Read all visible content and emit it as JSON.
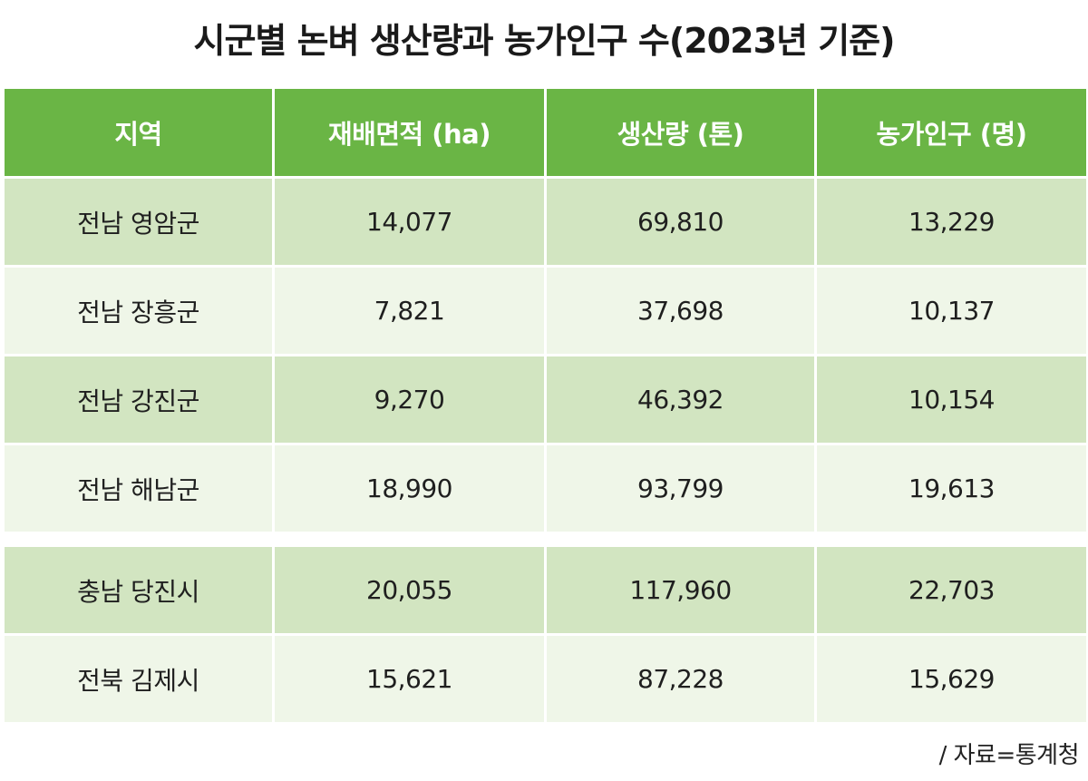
{
  "title": "시군별 논벼 생산량과 농가인구 수(2023년 기준)",
  "table": {
    "headers": [
      "지역",
      "재배면적 (ha)",
      "생산량 (톤)",
      "농가인구 (명)"
    ],
    "rows": [
      [
        "전남 영암군",
        "14,077",
        "69,810",
        "13,229"
      ],
      [
        "전남 장흥군",
        "7,821",
        "37,698",
        "10,137"
      ],
      [
        "전남 강진군",
        "9,270",
        "46,392",
        "10,154"
      ],
      [
        "전남 해남군",
        "18,990",
        "93,799",
        "19,613"
      ],
      [
        "충남 당진시",
        "20,055",
        "117,960",
        "22,703"
      ],
      [
        "전북 김제시",
        "15,621",
        "87,228",
        "15,629"
      ]
    ]
  },
  "source": "/ 자료=통계청",
  "colors": {
    "header_bg": "#6ab545",
    "row_dark": "#d2e5c1",
    "row_light": "#eff6e8"
  }
}
